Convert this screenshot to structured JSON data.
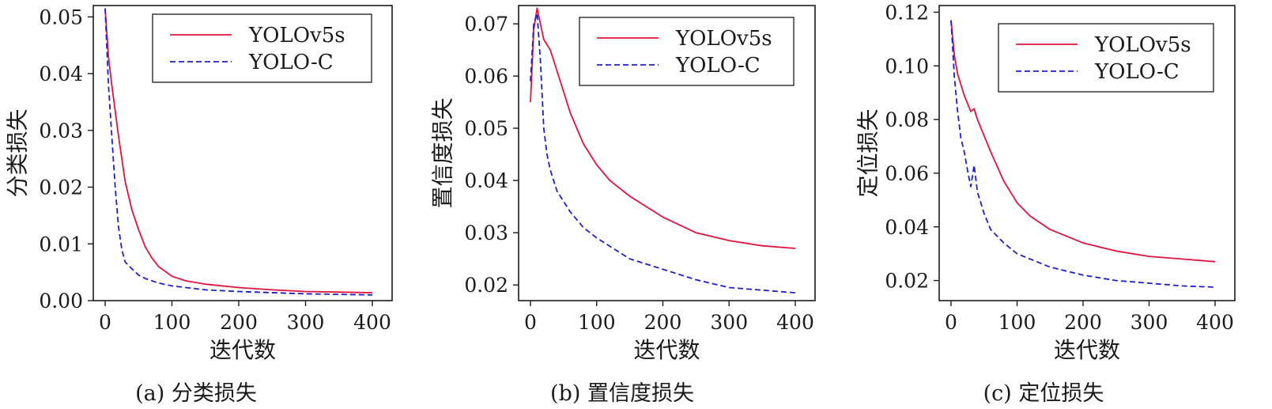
{
  "colors": {
    "yolov5s": "#e0143c",
    "yoloc": "#1e1ed2"
  },
  "chart_data": [
    {
      "type": "line",
      "title": "",
      "caption": "(a) 分类损失",
      "xlabel": "迭代数",
      "ylabel": "分类损失",
      "xlim": [
        0,
        400
      ],
      "ylim": [
        0,
        0.052
      ],
      "xticks": [
        0,
        100,
        200,
        300,
        400
      ],
      "xtick_labels": [
        "0",
        "100",
        "200",
        "300",
        "400"
      ],
      "yticks": [
        0,
        0.01,
        0.02,
        0.03,
        0.04,
        0.05
      ],
      "ytick_labels": [
        "0.00",
        "0.01",
        "0.02",
        "0.03",
        "0.04",
        "0.05"
      ],
      "grid": false,
      "legend": "top-right",
      "series": [
        {
          "name": "YOLOv5s",
          "style": "solid",
          "x": [
            0,
            5,
            10,
            20,
            30,
            40,
            50,
            60,
            70,
            80,
            100,
            120,
            150,
            200,
            250,
            300,
            350,
            400
          ],
          "y": [
            0.0515,
            0.043,
            0.038,
            0.029,
            0.021,
            0.016,
            0.0125,
            0.0095,
            0.0075,
            0.006,
            0.0043,
            0.0035,
            0.0029,
            0.0023,
            0.0019,
            0.0016,
            0.0015,
            0.0014
          ]
        },
        {
          "name": "YOLO-C",
          "style": "dashed",
          "x": [
            0,
            5,
            10,
            15,
            20,
            25,
            30,
            35,
            40,
            50,
            60,
            80,
            100,
            150,
            200,
            300,
            400
          ],
          "y": [
            0.0515,
            0.038,
            0.029,
            0.02,
            0.013,
            0.009,
            0.0068,
            0.0062,
            0.0056,
            0.0045,
            0.0039,
            0.0031,
            0.0026,
            0.0019,
            0.0016,
            0.0012,
            0.001
          ]
        }
      ]
    },
    {
      "type": "line",
      "title": "",
      "caption": "(b) 置信度损失",
      "xlabel": "迭代数",
      "ylabel": "置信度损失",
      "xlim": [
        0,
        400
      ],
      "ylim": [
        0.017,
        0.0735
      ],
      "xticks": [
        0,
        100,
        200,
        300,
        400
      ],
      "xtick_labels": [
        "0",
        "100",
        "200",
        "300",
        "400"
      ],
      "yticks": [
        0.02,
        0.03,
        0.04,
        0.05,
        0.06,
        0.07
      ],
      "ytick_labels": [
        "0.02",
        "0.03",
        "0.04",
        "0.05",
        "0.06",
        "0.07"
      ],
      "grid": false,
      "legend": "top-right",
      "series": [
        {
          "name": "YOLOv5s",
          "style": "solid",
          "x": [
            0,
            5,
            10,
            15,
            20,
            30,
            40,
            50,
            60,
            70,
            80,
            100,
            120,
            150,
            200,
            250,
            300,
            350,
            400
          ],
          "y": [
            0.055,
            0.069,
            0.073,
            0.07,
            0.067,
            0.065,
            0.061,
            0.057,
            0.053,
            0.05,
            0.047,
            0.043,
            0.04,
            0.037,
            0.033,
            0.03,
            0.0285,
            0.0275,
            0.027
          ]
        },
        {
          "name": "YOLO-C",
          "style": "dashed",
          "x": [
            0,
            5,
            10,
            15,
            20,
            25,
            30,
            35,
            40,
            50,
            60,
            80,
            100,
            150,
            200,
            250,
            300,
            350,
            400
          ],
          "y": [
            0.059,
            0.07,
            0.072,
            0.063,
            0.05,
            0.045,
            0.042,
            0.04,
            0.038,
            0.036,
            0.034,
            0.031,
            0.029,
            0.025,
            0.023,
            0.021,
            0.0195,
            0.019,
            0.0185
          ]
        }
      ]
    },
    {
      "type": "line",
      "title": "",
      "caption": "(c) 定位损失",
      "xlabel": "迭代数",
      "ylabel": "定位损失",
      "xlim": [
        0,
        400
      ],
      "ylim": [
        0.0125,
        0.1225
      ],
      "xticks": [
        0,
        100,
        200,
        300,
        400
      ],
      "xtick_labels": [
        "0",
        "100",
        "200",
        "300",
        "400"
      ],
      "yticks": [
        0.02,
        0.04,
        0.06,
        0.08,
        0.1,
        0.12
      ],
      "ytick_labels": [
        "0.02",
        "0.04",
        "0.06",
        "0.08",
        "0.10",
        "0.12"
      ],
      "grid": false,
      "legend": "top-right",
      "series": [
        {
          "name": "YOLOv5s",
          "style": "solid",
          "x": [
            0,
            5,
            10,
            20,
            30,
            35,
            40,
            50,
            60,
            80,
            100,
            120,
            150,
            200,
            250,
            300,
            350,
            400
          ],
          "y": [
            0.117,
            0.104,
            0.097,
            0.089,
            0.083,
            0.084,
            0.08,
            0.074,
            0.068,
            0.057,
            0.049,
            0.044,
            0.039,
            0.034,
            0.031,
            0.029,
            0.028,
            0.027
          ]
        },
        {
          "name": "YOLO-C",
          "style": "dashed",
          "x": [
            0,
            5,
            10,
            15,
            20,
            25,
            30,
            35,
            40,
            50,
            60,
            80,
            100,
            150,
            200,
            250,
            300,
            350,
            400
          ],
          "y": [
            0.117,
            0.096,
            0.083,
            0.073,
            0.068,
            0.061,
            0.055,
            0.063,
            0.053,
            0.045,
            0.039,
            0.034,
            0.03,
            0.025,
            0.022,
            0.02,
            0.019,
            0.018,
            0.0175
          ]
        }
      ]
    }
  ]
}
